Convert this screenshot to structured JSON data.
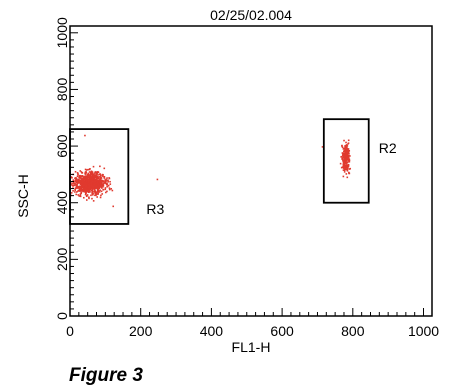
{
  "caption": "Figure 3",
  "chart_data": {
    "type": "scatter",
    "title": "02/25/02.004",
    "xlabel": "FL1-H",
    "ylabel": "SSC-H",
    "xlim": [
      0,
      1024
    ],
    "ylim": [
      0,
      1024
    ],
    "xticks": [
      0,
      200,
      400,
      600,
      800,
      1000
    ],
    "yticks": [
      0,
      200,
      400,
      600,
      800,
      1000
    ],
    "point_color": "#e03a2f",
    "grid": false,
    "clusters": [
      {
        "center": [
          55,
          470
        ],
        "spread": [
          38,
          32
        ],
        "count": 900
      },
      {
        "center": [
          778,
          560
        ],
        "spread": [
          9,
          42
        ],
        "count": 260
      }
    ],
    "scattered_points": [
      [
        245,
        485
      ],
      [
        712,
        600
      ],
      [
        40,
        640
      ],
      [
        120,
        390
      ]
    ],
    "regions": [
      {
        "name": "R3",
        "x": [
          0,
          165
        ],
        "y": [
          325,
          660
        ]
      },
      {
        "name": "R2",
        "x": [
          718,
          845
        ],
        "y": [
          400,
          695
        ]
      }
    ]
  }
}
